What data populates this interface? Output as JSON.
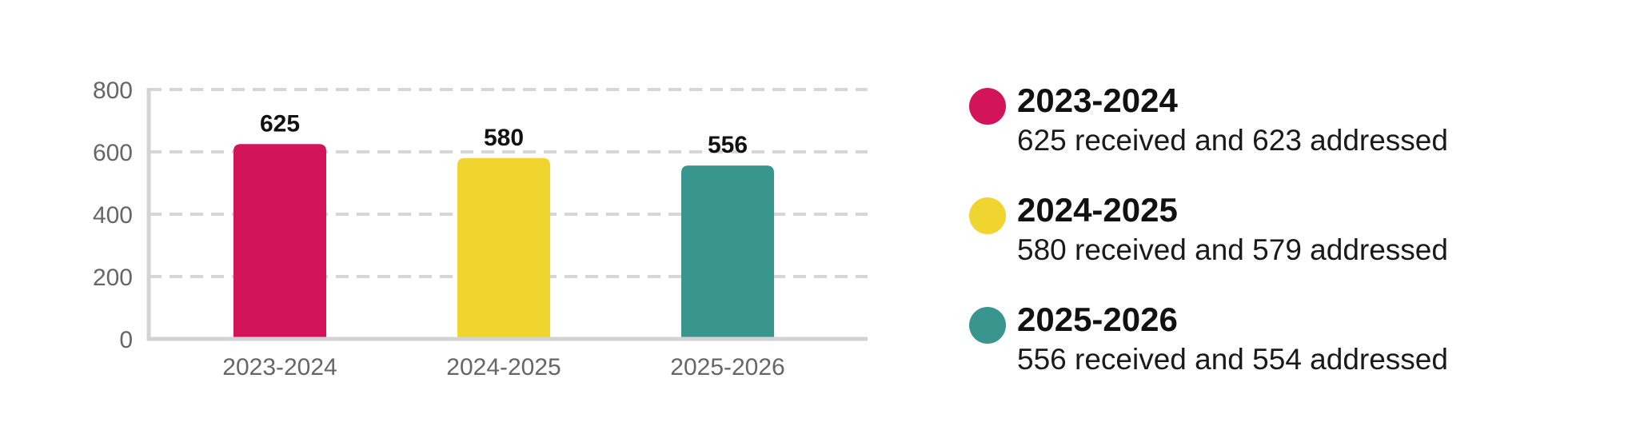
{
  "chart_data": {
    "type": "bar",
    "categories": [
      "2023-2024",
      "2024-2025",
      "2025-2026"
    ],
    "values": [
      625,
      580,
      556
    ],
    "data_labels": [
      "625",
      "580",
      "556"
    ],
    "colors": [
      "#D4145A",
      "#F0D42F",
      "#38968F"
    ],
    "ylim": [
      0,
      800
    ],
    "yticks": [
      0,
      200,
      400,
      600,
      800
    ],
    "grid": true,
    "legend_position": "right",
    "title": "",
    "xlabel": "",
    "ylabel": ""
  },
  "legend": {
    "items": [
      {
        "title": "2023-2024",
        "description": "625 received and 623 addressed",
        "color": "#D4145A"
      },
      {
        "title": "2024-2025",
        "description": "580 received and 579 addressed",
        "color": "#F0D42F"
      },
      {
        "title": "2025-2026",
        "description": "556 received and 554 addressed",
        "color": "#38968F"
      }
    ]
  },
  "style": {
    "axis_color": "#D3D3D3",
    "grid_color": "#D6D6D6",
    "tick_label_color": "#666666",
    "value_label_color": "#111111"
  }
}
